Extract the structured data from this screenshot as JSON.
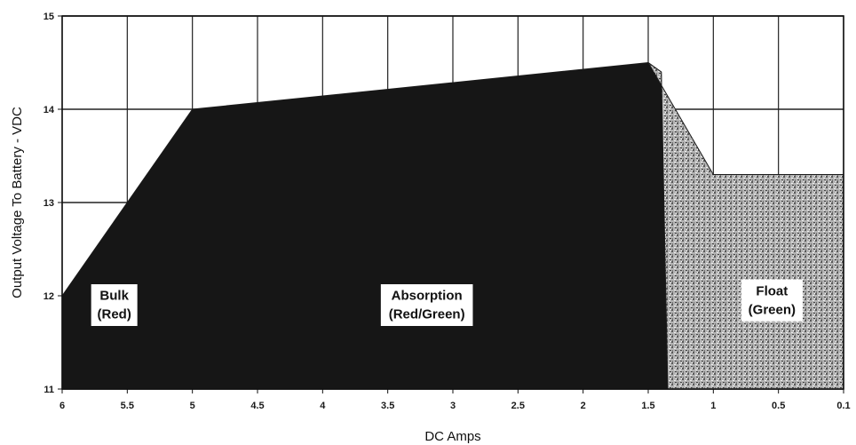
{
  "chart_data": {
    "type": "area",
    "title": "",
    "xlabel": "DC Amps",
    "ylabel": "Output Voltage To Battery - VDC",
    "xlim": [
      6,
      0.1
    ],
    "ylim": [
      11,
      15
    ],
    "x_ticks": [
      "6",
      "5.5",
      "5",
      "4.5",
      "4",
      "3.5",
      "3",
      "2.5",
      "2",
      "1.5",
      "1",
      "0.5",
      "0.1"
    ],
    "y_ticks": [
      "11",
      "12",
      "13",
      "14",
      "15"
    ],
    "grid": true,
    "legend": "none",
    "regions": [
      {
        "name": "bulk-absorption",
        "color": "#161616",
        "points": [
          [
            6,
            11
          ],
          [
            6,
            12.0
          ],
          [
            5,
            14.0
          ],
          [
            1.5,
            14.5
          ],
          [
            1.4,
            14.4
          ],
          [
            1.35,
            11
          ]
        ]
      },
      {
        "name": "float",
        "color": "#8a8a8a",
        "points": [
          [
            1.35,
            11
          ],
          [
            1.4,
            14.4
          ],
          [
            1.5,
            14.5
          ],
          [
            1,
            13.3
          ],
          [
            0.1,
            13.3
          ],
          [
            0.1,
            11
          ]
        ]
      }
    ],
    "annotations": [
      {
        "lines": [
          "Bulk",
          "(Red)"
        ],
        "x": 5.6,
        "y": 11.9
      },
      {
        "lines": [
          "Absorption",
          "(Red/Green)"
        ],
        "x": 3.2,
        "y": 11.9
      },
      {
        "lines": [
          "Float",
          "(Green)"
        ],
        "x": 0.55,
        "y": 11.95
      }
    ]
  }
}
